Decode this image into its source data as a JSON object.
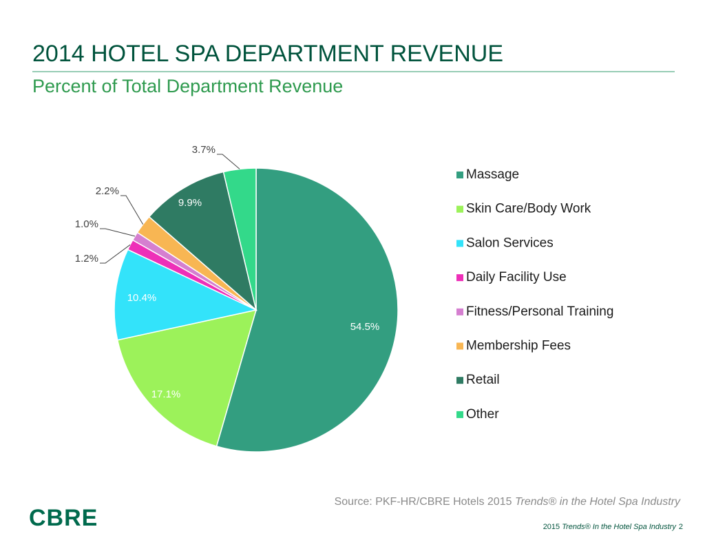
{
  "chart_data": {
    "type": "pie",
    "title": "2014 HOTEL SPA DEPARTMENT REVENUE",
    "subtitle": "Percent of Total Department Revenue",
    "categories": [
      "Massage",
      "Skin Care/Body Work",
      "Salon Services",
      "Daily Facility Use",
      "Fitness/Personal Training",
      "Membership Fees",
      "Retail",
      "Other"
    ],
    "values": [
      54.5,
      17.1,
      10.4,
      1.2,
      1.0,
      2.2,
      9.9,
      3.7
    ],
    "value_labels": [
      "54.5%",
      "17.1%",
      "10.4%",
      "1.2%",
      "1.0%",
      "2.2%",
      "9.9%",
      "3.7%"
    ],
    "colors": [
      "#339e80",
      "#9cf25a",
      "#33e3fa",
      "#ee2fb8",
      "#d57fd0",
      "#f8b653",
      "#2f7b63",
      "#33d98a"
    ],
    "legend": "right"
  },
  "source": {
    "text": "Source: PKF-HR/CBRE Hotels 2015 ",
    "italic": "Trends® in the Hotel Spa Industry"
  },
  "footer": {
    "text": "2015 ",
    "italic": "Trends® In the Hotel Spa Industry",
    "page": "2"
  },
  "logo": "CBRE"
}
